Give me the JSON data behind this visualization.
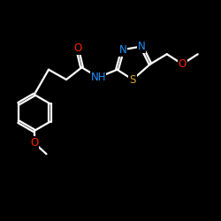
{
  "bg": "#000000",
  "bond_color": "#FFFFFF",
  "N_color": "#1E90FF",
  "O_color": "#FF2200",
  "S_color": "#DAA520",
  "figsize": [
    2.5,
    2.5
  ],
  "dpi": 100,
  "xlim": [
    0,
    10
  ],
  "ylim": [
    0,
    10
  ],
  "lw": 1.6,
  "fs": 8.5
}
